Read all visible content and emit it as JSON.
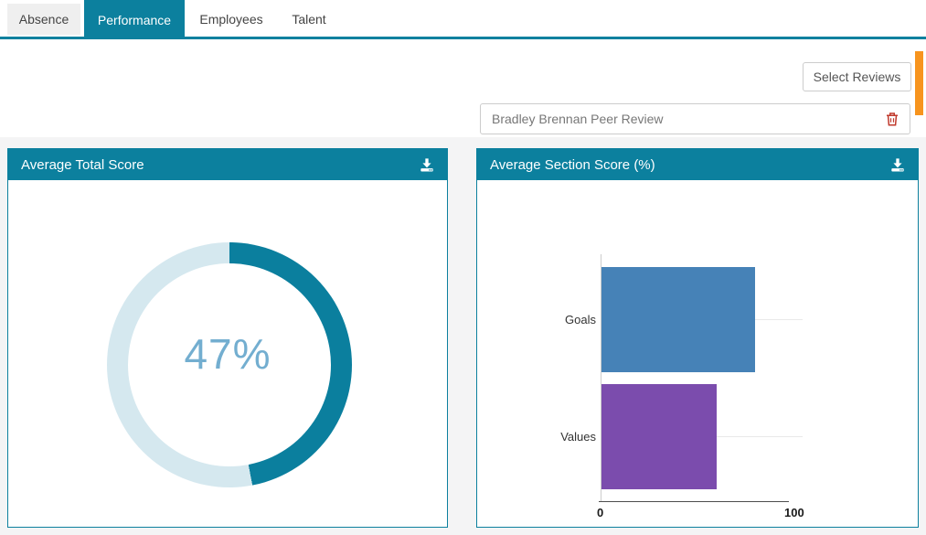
{
  "tabs": [
    {
      "label": "Absence",
      "active": false
    },
    {
      "label": "Performance",
      "active": true
    },
    {
      "label": "Employees",
      "active": false
    },
    {
      "label": "Talent",
      "active": false
    }
  ],
  "toolbar": {
    "select_reviews_label": "Select Reviews"
  },
  "review_filter": {
    "value": "Bradley Brennan Peer Review",
    "delete_icon": "trash-icon"
  },
  "cards": {
    "total_score": {
      "title": "Average Total Score",
      "icon": "download-icon"
    },
    "section_score": {
      "title": "Average Section Score (%)",
      "icon": "download-icon"
    }
  },
  "colors": {
    "accent_teal": "#0c809e",
    "donut_filled": "#0b7f9e",
    "donut_remainder": "#d5e8ef",
    "donut_label": "#73aed0",
    "bar_goals": "#4682b7",
    "bar_values": "#7b4cad",
    "orange_bar": "#f7941e",
    "trash_red": "#c0392c"
  },
  "chart_data": [
    {
      "type": "pie",
      "variant": "donut",
      "title": "Average Total Score",
      "value": 47,
      "max": 100,
      "center_label": "47%",
      "segments": [
        {
          "name": "score",
          "value": 47,
          "color": "#0b7f9e"
        },
        {
          "name": "remainder",
          "value": 53,
          "color": "#d5e8ef"
        }
      ]
    },
    {
      "type": "bar",
      "orientation": "horizontal",
      "title": "Average Section Score (%)",
      "categories": [
        "Goals",
        "Values"
      ],
      "values": [
        80,
        60
      ],
      "bar_colors": [
        "#4682b7",
        "#7b4cad"
      ],
      "xlim": [
        0,
        100
      ],
      "x_ticks": [
        "0",
        "100"
      ],
      "grid": true,
      "legend": "none"
    }
  ]
}
